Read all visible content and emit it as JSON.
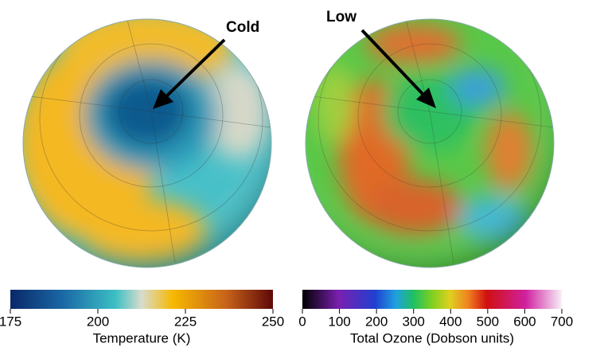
{
  "panels": [
    {
      "annotation": "Cold",
      "colorbar": {
        "label": "Temperature (K)",
        "lim": [
          175,
          250
        ],
        "ticks": [
          175,
          200,
          225,
          250
        ]
      }
    },
    {
      "annotation": "Low",
      "colorbar": {
        "label": "Total Ozone (Dobson units)",
        "lim": [
          0,
          700
        ],
        "ticks": [
          0,
          100,
          200,
          300,
          400,
          500,
          600,
          700
        ]
      }
    }
  ]
}
